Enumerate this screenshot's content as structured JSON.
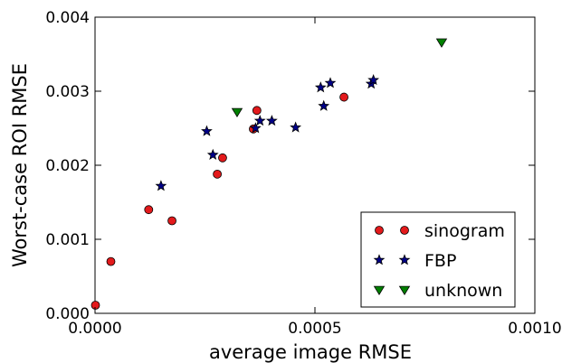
{
  "chart_data": {
    "type": "scatter",
    "xlabel": "average image RMSE",
    "ylabel": "Worst-case ROI RMSE",
    "xlim": [
      0,
      0.001
    ],
    "ylim": [
      0,
      0.004
    ],
    "x_ticks": [
      0,
      0.0005,
      0.001
    ],
    "x_tick_labels": [
      "0.0000",
      "0.0005",
      "0.0010"
    ],
    "y_ticks": [
      0,
      0.001,
      0.002,
      0.003,
      0.004
    ],
    "y_tick_labels": [
      "0.000",
      "0.001",
      "0.002",
      "0.003",
      "0.004"
    ],
    "grid": false,
    "legend_position": "lower right",
    "series": [
      {
        "name": "sinogram",
        "marker": "circle",
        "color": "#e31a1c",
        "points": [
          [
            1e-06,
            0.00011
          ],
          [
            3.6e-05,
            0.0007
          ],
          [
            0.000122,
            0.0014
          ],
          [
            0.000175,
            0.00125
          ],
          [
            0.000278,
            0.00188
          ],
          [
            0.00029,
            0.0021
          ],
          [
            0.00036,
            0.00249
          ],
          [
            0.000368,
            0.00274
          ],
          [
            0.000566,
            0.00292
          ]
        ]
      },
      {
        "name": "FBP",
        "marker": "star",
        "color": "#000088",
        "points": [
          [
            0.00015,
            0.00172
          ],
          [
            0.000254,
            0.00246
          ],
          [
            0.000268,
            0.00214
          ],
          [
            0.000365,
            0.0025
          ],
          [
            0.000375,
            0.0026
          ],
          [
            0.000402,
            0.0026
          ],
          [
            0.000456,
            0.00251
          ],
          [
            0.000513,
            0.00305
          ],
          [
            0.00052,
            0.0028
          ],
          [
            0.000535,
            0.00311
          ],
          [
            0.000628,
            0.0031
          ],
          [
            0.000633,
            0.00315
          ]
        ]
      },
      {
        "name": "unknown",
        "marker": "triangle-down",
        "color": "#008000",
        "points": [
          [
            0.000323,
            0.00272
          ],
          [
            0.000788,
            0.00366
          ]
        ]
      }
    ]
  }
}
